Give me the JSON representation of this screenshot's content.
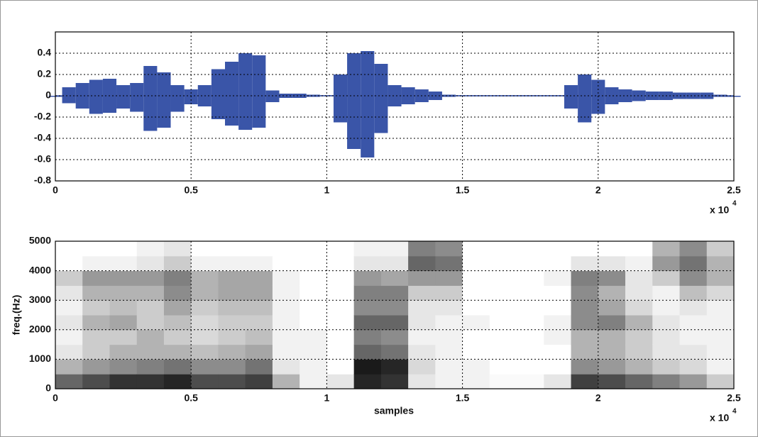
{
  "chart_data": [
    {
      "type": "waveform",
      "color": "#3a55a8",
      "x": [
        0,
        0.05,
        0.1,
        0.15,
        0.2,
        0.25,
        0.3,
        0.35,
        0.4,
        0.45,
        0.5,
        0.55,
        0.6,
        0.65,
        0.7,
        0.75,
        0.8,
        0.85,
        0.9,
        0.95,
        1.0,
        1.05,
        1.1,
        1.15,
        1.2,
        1.25,
        1.3,
        1.35,
        1.4,
        1.45,
        1.5,
        1.55,
        1.6,
        1.65,
        1.7,
        1.75,
        1.8,
        1.85,
        1.9,
        1.95,
        2.0,
        2.05,
        2.1,
        2.15,
        2.2,
        2.25,
        2.3,
        2.35,
        2.4,
        2.45,
        2.5
      ],
      "upper": [
        0,
        0.08,
        0.12,
        0.15,
        0.16,
        0.1,
        0.12,
        0.28,
        0.22,
        0.1,
        0.06,
        0.1,
        0.25,
        0.32,
        0.4,
        0.38,
        0.05,
        0.02,
        0.02,
        0.01,
        0.005,
        0.2,
        0.4,
        0.42,
        0.3,
        0.1,
        0.08,
        0.06,
        0.04,
        0.01,
        0.005,
        0.005,
        0.005,
        0.005,
        0.005,
        0.005,
        0.005,
        0.005,
        0.1,
        0.2,
        0.15,
        0.08,
        0.06,
        0.05,
        0.04,
        0.04,
        0.03,
        0.03,
        0.03,
        0.01,
        0
      ],
      "lower": [
        0,
        -0.07,
        -0.12,
        -0.17,
        -0.16,
        -0.12,
        -0.15,
        -0.33,
        -0.3,
        -0.15,
        -0.08,
        -0.1,
        -0.22,
        -0.28,
        -0.32,
        -0.3,
        -0.06,
        -0.02,
        -0.02,
        -0.01,
        -0.005,
        -0.25,
        -0.5,
        -0.58,
        -0.35,
        -0.1,
        -0.08,
        -0.06,
        -0.04,
        -0.01,
        -0.005,
        -0.005,
        -0.005,
        -0.005,
        -0.005,
        -0.005,
        -0.005,
        -0.005,
        -0.12,
        -0.25,
        -0.17,
        -0.08,
        -0.06,
        -0.05,
        -0.04,
        -0.04,
        -0.03,
        -0.03,
        -0.03,
        -0.01,
        0
      ],
      "xlim": [
        0,
        2.5
      ],
      "xticks": [
        0,
        0.5,
        1,
        1.5,
        2,
        2.5
      ],
      "ylim": [
        -0.8,
        0.6
      ],
      "yticks": [
        0.4,
        0.2,
        0,
        -0.2,
        -0.4,
        -0.6,
        -0.8
      ],
      "x_scale_label": {
        "base": "x 10",
        "exponent": "4"
      },
      "grid": true
    },
    {
      "type": "spectrogram",
      "colormap": [
        "#ffffff",
        "#000000"
      ],
      "xlabel": "samples",
      "ylabel": "freq.(Hz)",
      "xlim": [
        0,
        2.5
      ],
      "xticks": [
        0,
        0.5,
        1,
        1.5,
        2,
        2.5
      ],
      "ylim": [
        0,
        5000
      ],
      "yticks": [
        0,
        1000,
        2000,
        3000,
        4000,
        5000
      ],
      "x_scale_label": {
        "base": "x 10",
        "exponent": "4"
      },
      "grid": true,
      "values": [
        [
          0.6,
          0.3,
          0.1,
          0.05,
          0.1,
          0.05,
          0.1,
          0.2,
          0,
          0
        ],
        [
          0.7,
          0.4,
          0.2,
          0.2,
          0.3,
          0.2,
          0.3,
          0.4,
          0.05,
          0
        ],
        [
          0.8,
          0.45,
          0.3,
          0.2,
          0.35,
          0.25,
          0.3,
          0.4,
          0.05,
          0
        ],
        [
          0.8,
          0.5,
          0.3,
          0.3,
          0.2,
          0.2,
          0.3,
          0.4,
          0.1,
          0.05
        ],
        [
          0.85,
          0.55,
          0.3,
          0.2,
          0.25,
          0.35,
          0.45,
          0.5,
          0.2,
          0.1
        ],
        [
          0.7,
          0.45,
          0.25,
          0.15,
          0.15,
          0.2,
          0.3,
          0.3,
          0.05,
          0
        ],
        [
          0.7,
          0.45,
          0.3,
          0.2,
          0.2,
          0.25,
          0.35,
          0.35,
          0.05,
          0
        ],
        [
          0.75,
          0.55,
          0.35,
          0.25,
          0.2,
          0.25,
          0.35,
          0.35,
          0.05,
          0
        ],
        [
          0.3,
          0.1,
          0.05,
          0.05,
          0.05,
          0.05,
          0.05,
          0.05,
          0,
          0
        ],
        [
          0.05,
          0.05,
          0.05,
          0.05,
          0,
          0,
          0,
          0,
          0,
          0
        ],
        [
          0.1,
          0,
          0,
          0,
          0,
          0,
          0,
          0,
          0,
          0
        ],
        [
          0.85,
          0.9,
          0.6,
          0.5,
          0.6,
          0.45,
          0.5,
          0.4,
          0.1,
          0.05
        ],
        [
          0.8,
          0.85,
          0.55,
          0.45,
          0.6,
          0.45,
          0.5,
          0.35,
          0.1,
          0.05
        ],
        [
          0.1,
          0.15,
          0.1,
          0.05,
          0.1,
          0.1,
          0.2,
          0.4,
          0.6,
          0.5
        ],
        [
          0.05,
          0.05,
          0.05,
          0.05,
          0.05,
          0.1,
          0.2,
          0.4,
          0.55,
          0.45
        ],
        [
          0.05,
          0.05,
          0,
          0,
          0.05,
          0,
          0,
          0,
          0,
          0
        ],
        [
          0.02,
          0,
          0,
          0,
          0,
          0,
          0,
          0,
          0,
          0
        ],
        [
          0.02,
          0,
          0,
          0,
          0,
          0,
          0,
          0,
          0,
          0
        ],
        [
          0.1,
          0,
          0,
          0.05,
          0.05,
          0,
          0,
          0.05,
          0,
          0
        ],
        [
          0.75,
          0.45,
          0.3,
          0.3,
          0.45,
          0.45,
          0.45,
          0.5,
          0.1,
          0
        ],
        [
          0.7,
          0.4,
          0.3,
          0.3,
          0.5,
          0.35,
          0.3,
          0.45,
          0.1,
          0
        ],
        [
          0.6,
          0.3,
          0.2,
          0.2,
          0.3,
          0.15,
          0.1,
          0.1,
          0.05,
          0
        ],
        [
          0.5,
          0.2,
          0.1,
          0.1,
          0.1,
          0.05,
          0.05,
          0.2,
          0.4,
          0.3
        ],
        [
          0.4,
          0.15,
          0.1,
          0.05,
          0.05,
          0.1,
          0.25,
          0.45,
          0.55,
          0.45
        ],
        [
          0.2,
          0.05,
          0.05,
          0.05,
          0.05,
          0.05,
          0.15,
          0.3,
          0.3,
          0.2
        ]
      ]
    }
  ]
}
